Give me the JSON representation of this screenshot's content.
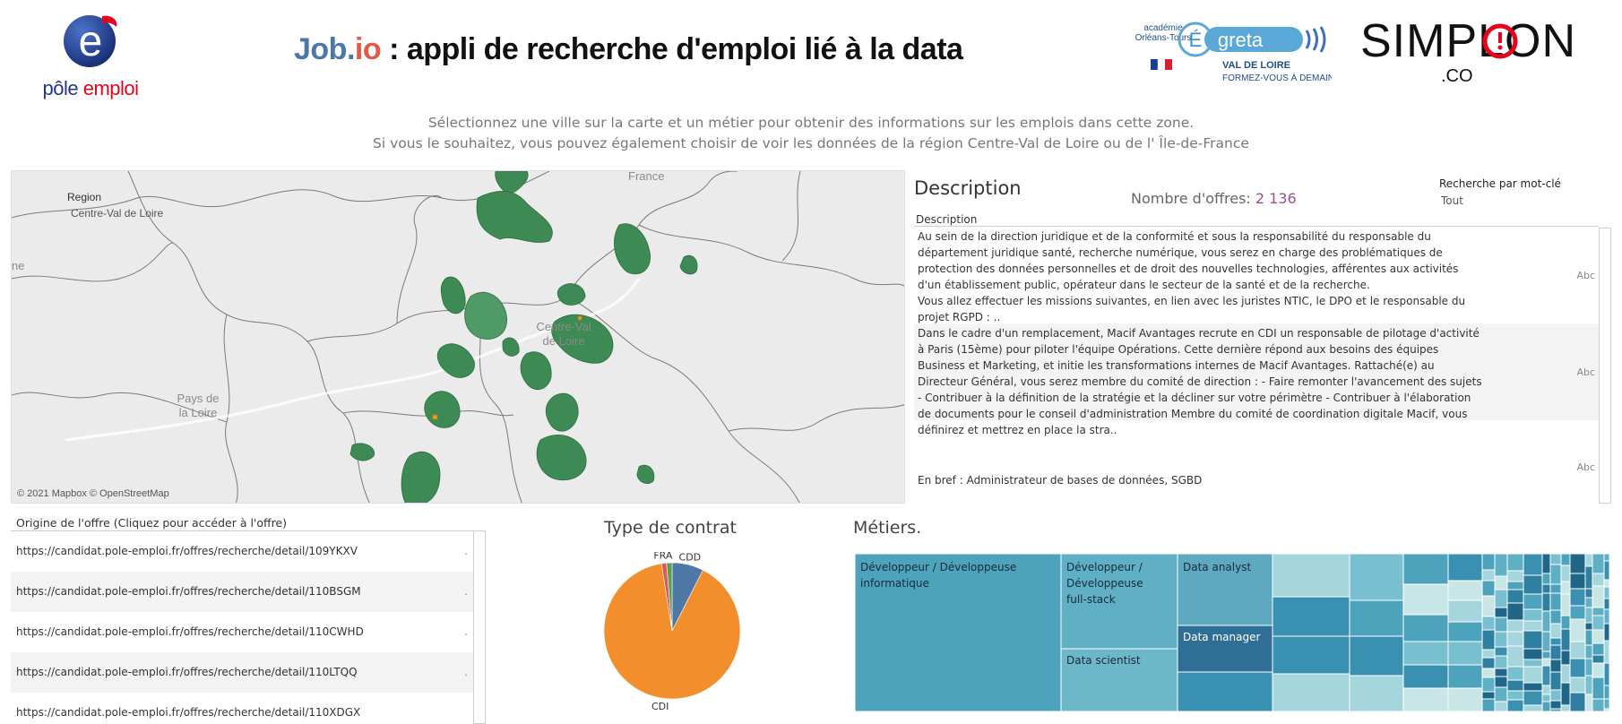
{
  "header": {
    "pole_emploi_logo": {
      "word1": "pôle",
      "word2": "emploi",
      "glyph": "e"
    },
    "title_brand_a": "Job.",
    "title_brand_b": "io",
    "title_rest": " : appli de recherche d'emploi lié à la data",
    "greta_logo": {
      "academie": "académie",
      "academie_sub": "Orléans-Tours",
      "name": "greta",
      "region": "VAL DE LOIRE",
      "tagline": "FORMEZ-VOUS À DEMAIN"
    },
    "simplon_logo": {
      "name": "SIMPLON",
      "suffix": ".CO"
    }
  },
  "subtitle": {
    "line1": "Sélectionnez une ville sur la carte et un métier pour obtenir des informations sur les emplois dans cette zone.",
    "line2": "Si vous le souhaitez, vous pouvez également choisir de voir les données de la région Centre-Val de Loire ou de l' Île-de-France"
  },
  "map": {
    "region_filter_title": "Region",
    "region_filter_value": "Centre-Val de Loire",
    "labels": {
      "france": "France",
      "centre_line1": "Centre-Val",
      "centre_line2": "de Loire",
      "pays_line1": "Pays de",
      "pays_line2": "la Loire",
      "edge": "ne"
    },
    "credit": "© 2021 Mapbox © OpenStreetMap",
    "area_color": "#3d8a55"
  },
  "description_panel": {
    "title": "Description",
    "offers_label": "Nombre d'offres: ",
    "offers_value": "2 136",
    "keyword_filter_label": "Recherche par mot-clé",
    "keyword_filter_value": "Tout",
    "column_header": "Description",
    "rows": [
      {
        "text": " Au sein de la direction juridique et de la conformité et sous la responsabilité du responsable du département juridique santé, recherche numérique, vous serez en charge des problématiques de protection des données personnelles et de droit des nouvelles technologies, afférentes aux activités d'un établissement public, opérateur dans le secteur de la santé et de la recherche.\nVous allez effectuer les missions suivantes, en lien avec les juristes NTIC, le DPO et le responsable du projet RGPD : ..",
        "tag": "Abc"
      },
      {
        "text": " Dans le cadre d'un remplacement, Macif Avantages recrute en CDI un responsable de pilotage d'activité à Paris (15ème) pour piloter l'équipe Opérations. Cette dernière répond aux besoins des équipes Business et Marketing, et initie les transformations internes de Macif Avantages.  Rattaché(e) au Directeur Général, vous serez membre du comité de direction : - Faire remonter l'avancement des sujets  - Contribuer à la définition de la stratégie et la décliner sur votre périmètre  - Contribuer à l'élaboration de documents pour le conseil d'administration  Membre du comité de coordination digitale Macif, vous définirez et mettrez en place la stra..",
        "tag": "Abc"
      },
      {
        "text": "En bref : Administrateur de bases de données, SGBD",
        "tag": "Abc"
      }
    ]
  },
  "origin_table": {
    "title": "Origine de l'offre (Cliquez pour accéder à l'offre)",
    "rows": [
      "https://candidat.pole-emploi.fr/offres/recherche/detail/109YKXV",
      "https://candidat.pole-emploi.fr/offres/recherche/detail/110BSGM",
      "https://candidat.pole-emploi.fr/offres/recherche/detail/110CWHD",
      "https://candidat.pole-emploi.fr/offres/recherche/detail/110LTQQ",
      "https://candidat.pole-emploi.fr/offres/recherche/detail/110XDGX"
    ],
    "row_marker": "."
  },
  "chart_data": [
    {
      "type": "pie",
      "title": "Type de contrat",
      "labels": [
        "CDD",
        "CDI",
        "FRA",
        ""
      ],
      "values": [
        7.5,
        90,
        1.2,
        1.3
      ],
      "colors": [
        "#4e79a7",
        "#f28e2b",
        "#e15759",
        "#59a14f"
      ]
    },
    {
      "type": "treemap",
      "title": "Métiers.",
      "labels": [
        "Développeur / Développeuse informatique",
        "Développeur / Développeuse full-stack",
        "Data scientist",
        "Data analyst",
        "Data manager"
      ]
    }
  ]
}
